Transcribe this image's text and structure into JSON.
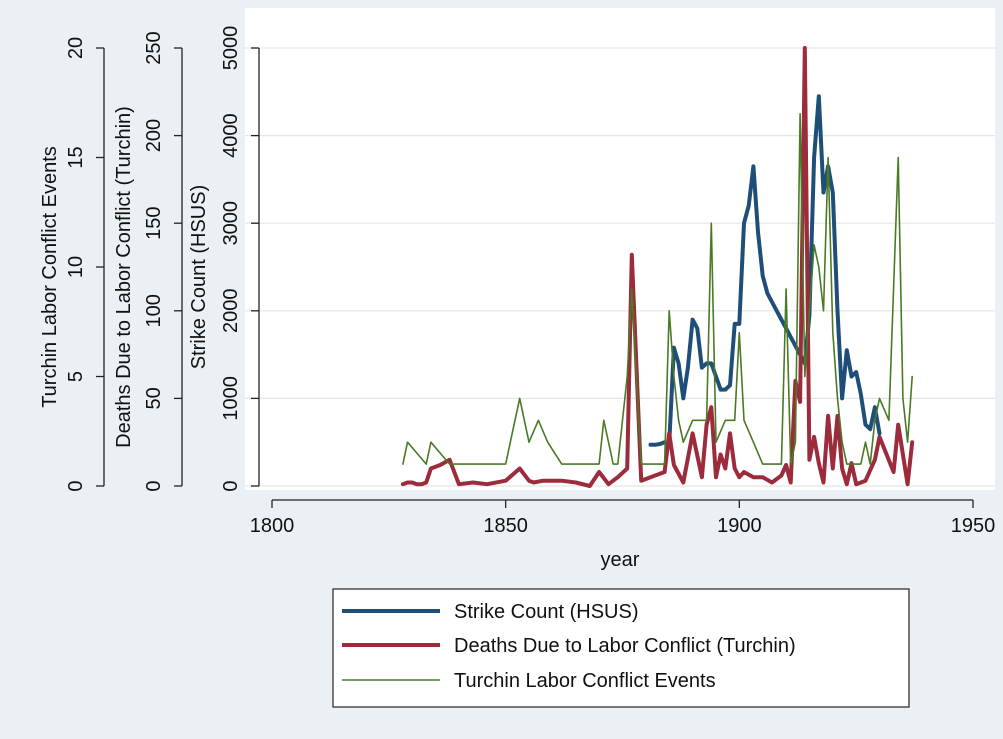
{
  "chart_data": {
    "type": "line",
    "xlabel": "year",
    "xlim": [
      1796,
      1953
    ],
    "x_ticks": [
      1800,
      1850,
      1900,
      1950
    ],
    "grid": true,
    "legend_position": "bottom",
    "y_axes": [
      {
        "id": "events",
        "label": "Turchin Labor Conflict Events",
        "lim": [
          0,
          20
        ],
        "ticks": [
          0,
          5,
          10,
          15,
          20
        ]
      },
      {
        "id": "deaths",
        "label": "Deaths Due to Labor Conflict (Turchin)",
        "lim": [
          0,
          250
        ],
        "ticks": [
          0,
          50,
          100,
          150,
          200,
          250
        ]
      },
      {
        "id": "strikes",
        "label": "Strike Count (HSUS)",
        "lim": [
          0,
          5000
        ],
        "ticks": [
          0,
          1000,
          2000,
          3000,
          4000,
          5000
        ]
      }
    ],
    "series": [
      {
        "name": "Strike Count (HSUS)",
        "axis": "strikes",
        "color": "#1f4e79",
        "width": 4,
        "x": [
          1881,
          1882,
          1883,
          1884,
          1885,
          1886,
          1887,
          1888,
          1889,
          1890,
          1891,
          1892,
          1893,
          1894,
          1895,
          1896,
          1897,
          1898,
          1899,
          1900,
          1901,
          1902,
          1903,
          1904,
          1905,
          1906,
          1907,
          1908,
          1909,
          1910,
          1911,
          1912,
          1913,
          1914,
          1915,
          1916,
          1917,
          1918,
          1919,
          1920,
          1921,
          1922,
          1923,
          1924,
          1925,
          1926,
          1927,
          1928,
          1929,
          1930
        ],
        "y": [
          470,
          470,
          480,
          500,
          480,
          1580,
          1400,
          1000,
          1350,
          1900,
          1800,
          1350,
          1400,
          1400,
          1250,
          1100,
          1100,
          1150,
          1850,
          1850,
          3000,
          3200,
          3650,
          2900,
          2400,
          2200,
          2100,
          2000,
          1900,
          1800,
          1700,
          1600,
          1500,
          1400,
          1950,
          3750,
          4450,
          3350,
          3650,
          3350,
          2000,
          1000,
          1550,
          1250,
          1300,
          1050,
          700,
          650,
          900,
          600
        ]
      },
      {
        "name": "Deaths Due to Labor Conflict (Turchin)",
        "axis": "deaths",
        "color": "#9c2b3b",
        "width": 4,
        "x": [
          1828,
          1829,
          1830,
          1831,
          1832,
          1833,
          1834,
          1836,
          1838,
          1840,
          1843,
          1846,
          1850,
          1853,
          1855,
          1856,
          1858,
          1860,
          1862,
          1865,
          1868,
          1870,
          1872,
          1874,
          1876,
          1877,
          1879,
          1881,
          1884,
          1885,
          1886,
          1888,
          1890,
          1892,
          1893,
          1894,
          1895,
          1896,
          1897,
          1898,
          1899,
          1900,
          1901,
          1903,
          1905,
          1907,
          1909,
          1910,
          1911,
          1912,
          1913,
          1914,
          1915,
          1916,
          1917,
          1918,
          1919,
          1920,
          1921,
          1922,
          1923,
          1924,
          1925,
          1927,
          1929,
          1930,
          1933,
          1934,
          1936,
          1937
        ],
        "y": [
          1,
          2,
          2,
          1,
          1,
          2,
          10,
          12,
          15,
          1,
          2,
          1,
          3,
          10,
          3,
          2,
          3,
          3,
          3,
          2,
          0,
          8,
          1,
          5,
          10,
          132,
          3,
          5,
          8,
          30,
          12,
          2,
          30,
          5,
          35,
          45,
          5,
          18,
          10,
          30,
          10,
          5,
          8,
          5,
          5,
          2,
          6,
          12,
          2,
          60,
          48,
          250,
          15,
          28,
          13,
          2,
          40,
          10,
          40,
          10,
          1,
          13,
          1,
          3,
          15,
          28,
          8,
          35,
          1,
          25
        ]
      },
      {
        "name": "Turchin Labor Conflict Events",
        "axis": "events",
        "color": "#4a7a24",
        "width": 1.6,
        "x": [
          1828,
          1829,
          1831,
          1833,
          1834,
          1836,
          1838,
          1840,
          1842,
          1845,
          1848,
          1850,
          1851,
          1853,
          1855,
          1857,
          1859,
          1862,
          1865,
          1870,
          1871,
          1873,
          1874,
          1876,
          1877,
          1879,
          1881,
          1884,
          1885,
          1886,
          1887,
          1888,
          1890,
          1891,
          1893,
          1894,
          1895,
          1897,
          1899,
          1900,
          1901,
          1903,
          1905,
          1908,
          1909,
          1910,
          1911,
          1912,
          1913,
          1914,
          1915,
          1916,
          1917,
          1918,
          1919,
          1920,
          1921,
          1922,
          1923,
          1925,
          1926,
          1927,
          1928,
          1929,
          1930,
          1932,
          1934,
          1935,
          1936,
          1937
        ],
        "y": [
          1,
          2,
          1.5,
          1,
          2,
          1.5,
          1,
          1,
          1,
          1,
          1,
          1,
          2,
          4,
          2,
          3,
          2,
          1,
          1,
          1,
          3,
          1,
          1,
          5,
          9,
          1,
          1,
          1,
          8,
          5,
          3,
          2,
          3,
          3,
          3,
          12,
          2,
          3,
          3,
          7,
          3,
          2,
          1,
          1,
          1,
          9,
          1,
          2,
          17,
          5,
          8,
          11,
          10,
          8,
          15,
          7,
          4,
          2,
          1,
          1,
          1,
          2,
          1,
          3,
          4,
          3,
          15,
          4,
          2,
          5
        ]
      }
    ]
  }
}
